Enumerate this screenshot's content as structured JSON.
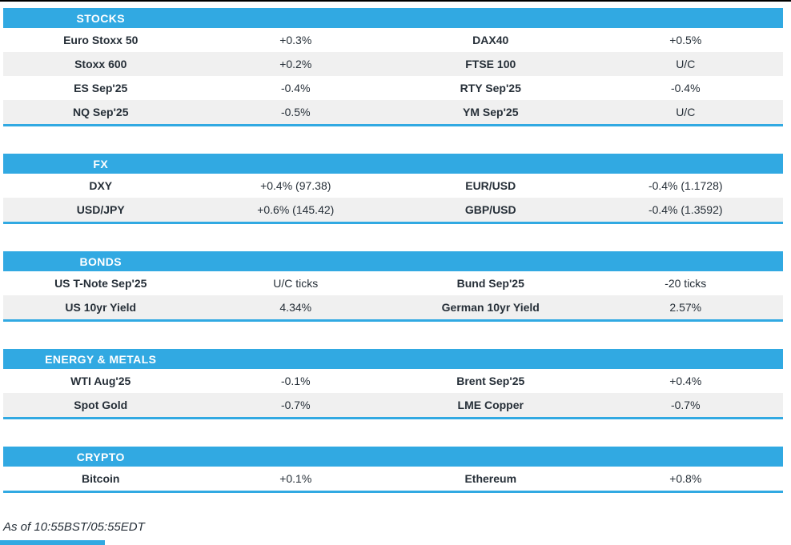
{
  "meta": {
    "as_of": "As of 10:55BST/05:55EDT"
  },
  "colors": {
    "accent_blue": "#31A9E2",
    "row_alt": "#F0F0F0",
    "text": "#262F38",
    "top_line": "#000000"
  },
  "sections": [
    {
      "title": "STOCKS",
      "rows": [
        [
          "Euro Stoxx 50",
          "+0.3%",
          "DAX40",
          "+0.5%"
        ],
        [
          "Stoxx 600",
          "+0.2%",
          "FTSE 100",
          "U/C"
        ],
        [
          "ES Sep'25",
          "-0.4%",
          "RTY Sep'25",
          "-0.4%"
        ],
        [
          "NQ Sep'25",
          "-0.5%",
          "YM Sep'25",
          "U/C"
        ]
      ]
    },
    {
      "title": "FX",
      "rows": [
        [
          "DXY",
          "+0.4% (97.38)",
          "EUR/USD",
          "-0.4% (1.1728)"
        ],
        [
          "USD/JPY",
          "+0.6% (145.42)",
          "GBP/USD",
          "-0.4% (1.3592)"
        ]
      ]
    },
    {
      "title": "BONDS",
      "rows": [
        [
          "US T-Note Sep'25",
          "U/C ticks",
          "Bund Sep'25",
          "-20 ticks"
        ],
        [
          "US 10yr Yield",
          "4.34%",
          "German 10yr Yield",
          "2.57%"
        ]
      ]
    },
    {
      "title": "ENERGY & METALS",
      "rows": [
        [
          "WTI Aug'25",
          "-0.1%",
          "Brent Sep'25",
          "+0.4%"
        ],
        [
          "Spot Gold",
          "-0.7%",
          "LME Copper",
          "-0.7%"
        ]
      ]
    },
    {
      "title": "CRYPTO",
      "rows": [
        [
          "Bitcoin",
          "+0.1%",
          "Ethereum",
          "+0.8%"
        ]
      ]
    }
  ]
}
